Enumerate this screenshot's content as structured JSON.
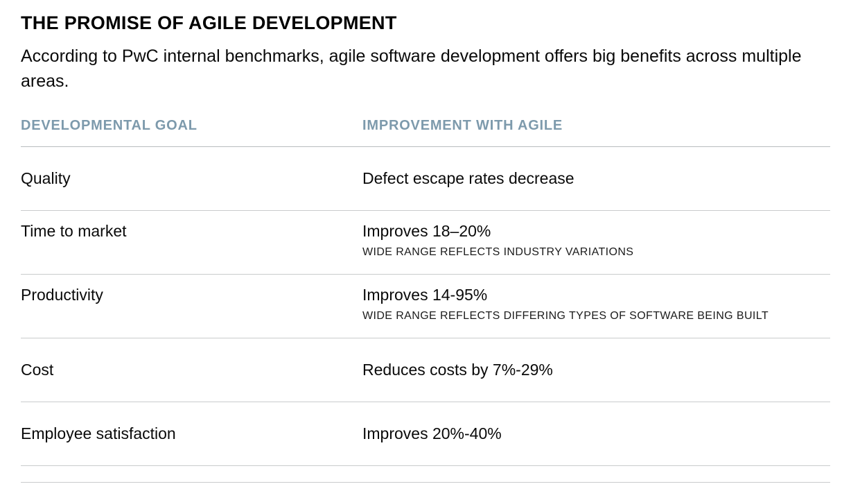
{
  "page": {
    "title": "THE PROMISE OF AGILE DEVELOPMENT",
    "subtitle": "According to PwC internal benchmarks, agile software development offers big benefits across multiple areas."
  },
  "table": {
    "columns": {
      "goal": "DEVELOPMENTAL GOAL",
      "improvement": "IMPROVEMENT WITH AGILE"
    },
    "rows": [
      {
        "goal": "Quality",
        "improvement": "Defect escape rates decrease",
        "note": ""
      },
      {
        "goal": "Time to market",
        "improvement": "Improves 18–20%",
        "note": "WIDE RANGE REFLECTS INDUSTRY VARIATIONS"
      },
      {
        "goal": "Productivity",
        "improvement": "Improves 14-95%",
        "note": "WIDE RANGE REFLECTS DIFFERING TYPES OF SOFTWARE BEING BUILT"
      },
      {
        "goal": "Cost",
        "improvement": "Reduces costs by 7%-29%",
        "note": ""
      },
      {
        "goal": "Employee satisfaction",
        "improvement": "Improves 20%-40%",
        "note": ""
      }
    ]
  },
  "colors": {
    "header_text": "#7d9aac",
    "divider": "#c9cbcc",
    "body_text": "#0a0a0a"
  }
}
